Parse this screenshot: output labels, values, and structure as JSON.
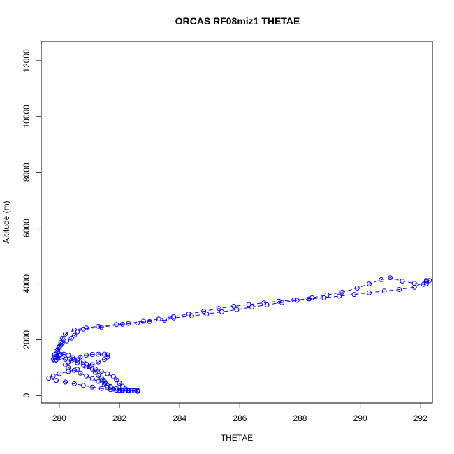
{
  "chart_data": {
    "type": "scatter",
    "title": "ORCAS RF08miz1 THETAE",
    "xlabel": "THETAE",
    "ylabel": "Altitude (m)",
    "xlim": [
      279.4,
      292.4
    ],
    "ylim": [
      -270,
      12700
    ],
    "xticks": [
      "280",
      "282",
      "284",
      "286",
      "288",
      "290",
      "292"
    ],
    "yticks": [
      "0",
      "2000",
      "4000",
      "6000",
      "8000",
      "10000",
      "12000"
    ],
    "marker": "open-circle",
    "line_style": "dashed",
    "color": "#0000ff",
    "series": [
      {
        "values": [
          [
            282.6,
            180
          ],
          [
            282.5,
            175
          ],
          [
            282.4,
            170
          ],
          [
            282.3,
            165
          ],
          [
            282.2,
            165
          ],
          [
            282.1,
            170
          ],
          [
            282.0,
            175
          ],
          [
            281.9,
            190
          ],
          [
            281.8,
            230
          ],
          [
            281.7,
            280
          ],
          [
            281.6,
            350
          ],
          [
            281.55,
            420
          ],
          [
            281.5,
            500
          ],
          [
            281.45,
            560
          ],
          [
            281.4,
            630
          ],
          [
            281.3,
            720
          ],
          [
            281.2,
            830
          ],
          [
            281.1,
            950
          ],
          [
            281.0,
            1050
          ],
          [
            280.9,
            1130
          ],
          [
            280.8,
            1200
          ],
          [
            280.6,
            1280
          ],
          [
            280.45,
            1360
          ],
          [
            280.3,
            1440
          ],
          [
            280.15,
            1480
          ],
          [
            280.05,
            1470
          ],
          [
            280.0,
            1420
          ],
          [
            279.95,
            1340
          ],
          [
            279.9,
            1280
          ],
          [
            279.85,
            1250
          ],
          [
            279.8,
            1300
          ],
          [
            279.85,
            1380
          ],
          [
            279.9,
            1460
          ],
          [
            279.95,
            1560
          ],
          [
            279.95,
            1650
          ],
          [
            280.0,
            1720
          ],
          [
            280.05,
            1800
          ],
          [
            280.1,
            1880
          ],
          [
            280.25,
            1950
          ],
          [
            280.4,
            2050
          ],
          [
            280.5,
            2150
          ],
          [
            280.6,
            2280
          ],
          [
            280.8,
            2380
          ],
          [
            281.4,
            2450
          ],
          [
            282.1,
            2550
          ],
          [
            282.6,
            2600
          ],
          [
            283.0,
            2650
          ],
          [
            283.5,
            2700
          ],
          [
            283.8,
            2780
          ],
          [
            284.4,
            2850
          ],
          [
            284.9,
            2920
          ],
          [
            285.4,
            3000
          ],
          [
            285.9,
            3080
          ],
          [
            286.4,
            3170
          ],
          [
            286.9,
            3250
          ],
          [
            287.4,
            3330
          ],
          [
            287.9,
            3410
          ],
          [
            288.4,
            3500
          ],
          [
            288.9,
            3600
          ],
          [
            289.4,
            3700
          ],
          [
            289.9,
            3850
          ],
          [
            290.3,
            4000
          ],
          [
            290.7,
            4150
          ],
          [
            291.0,
            4220
          ],
          [
            291.4,
            4100
          ],
          [
            291.8,
            4020
          ],
          [
            292.1,
            3980
          ],
          [
            292.2,
            4000
          ],
          [
            292.2,
            4080
          ],
          [
            292.3,
            4120
          ]
        ]
      },
      {
        "values": [
          [
            292.2,
            4120
          ],
          [
            291.8,
            3880
          ],
          [
            291.3,
            3800
          ],
          [
            290.8,
            3740
          ],
          [
            290.3,
            3680
          ],
          [
            289.8,
            3620
          ],
          [
            289.3,
            3560
          ],
          [
            288.8,
            3500
          ],
          [
            288.3,
            3460
          ],
          [
            287.8,
            3420
          ],
          [
            287.3,
            3380
          ],
          [
            286.8,
            3320
          ],
          [
            286.3,
            3260
          ],
          [
            285.8,
            3200
          ],
          [
            285.3,
            3120
          ],
          [
            284.8,
            3020
          ],
          [
            284.3,
            2920
          ],
          [
            283.8,
            2830
          ],
          [
            283.3,
            2740
          ],
          [
            282.8,
            2660
          ],
          [
            282.3,
            2580
          ],
          [
            281.9,
            2540
          ],
          [
            281.3,
            2480
          ],
          [
            280.9,
            2420
          ],
          [
            280.5,
            2350
          ],
          [
            280.2,
            2200
          ],
          [
            280.1,
            2050
          ],
          [
            280.05,
            1900
          ],
          [
            280.0,
            1750
          ],
          [
            279.9,
            1600
          ],
          [
            279.85,
            1470
          ],
          [
            279.9,
            1400
          ],
          [
            280.0,
            1350
          ],
          [
            280.2,
            1300
          ],
          [
            280.4,
            1250
          ],
          [
            280.6,
            1180
          ],
          [
            280.8,
            1100
          ],
          [
            281.0,
            1020
          ],
          [
            281.2,
            950
          ],
          [
            281.4,
            870
          ],
          [
            281.6,
            780
          ],
          [
            281.8,
            680
          ],
          [
            281.9,
            560
          ],
          [
            282.0,
            440
          ],
          [
            282.1,
            330
          ],
          [
            282.2,
            240
          ],
          [
            282.3,
            190
          ],
          [
            282.5,
            160
          ],
          [
            282.6,
            150
          ]
        ]
      },
      {
        "values": [
          [
            282.6,
            150
          ],
          [
            282.3,
            165
          ],
          [
            282.0,
            185
          ],
          [
            281.7,
            210
          ],
          [
            281.4,
            250
          ],
          [
            281.1,
            300
          ],
          [
            280.8,
            360
          ],
          [
            280.5,
            420
          ],
          [
            280.2,
            480
          ],
          [
            279.9,
            540
          ],
          [
            279.65,
            620
          ],
          [
            279.8,
            700
          ],
          [
            280.0,
            780
          ],
          [
            280.3,
            860
          ],
          [
            280.6,
            940
          ],
          [
            280.9,
            1020
          ],
          [
            281.1,
            1110
          ],
          [
            281.3,
            1200
          ],
          [
            281.5,
            1290
          ],
          [
            281.6,
            1380
          ],
          [
            281.6,
            1460
          ],
          [
            281.5,
            1480
          ],
          [
            281.3,
            1480
          ],
          [
            281.1,
            1470
          ],
          [
            280.9,
            1440
          ],
          [
            280.7,
            1380
          ],
          [
            280.5,
            1300
          ],
          [
            280.3,
            1200
          ],
          [
            280.2,
            1100
          ],
          [
            280.3,
            1000
          ],
          [
            280.5,
            900
          ],
          [
            280.7,
            800
          ],
          [
            280.9,
            700
          ],
          [
            281.1,
            600
          ],
          [
            281.3,
            500
          ],
          [
            281.5,
            400
          ],
          [
            281.7,
            320
          ],
          [
            281.9,
            250
          ],
          [
            282.1,
            200
          ],
          [
            282.3,
            170
          ]
        ]
      }
    ]
  }
}
